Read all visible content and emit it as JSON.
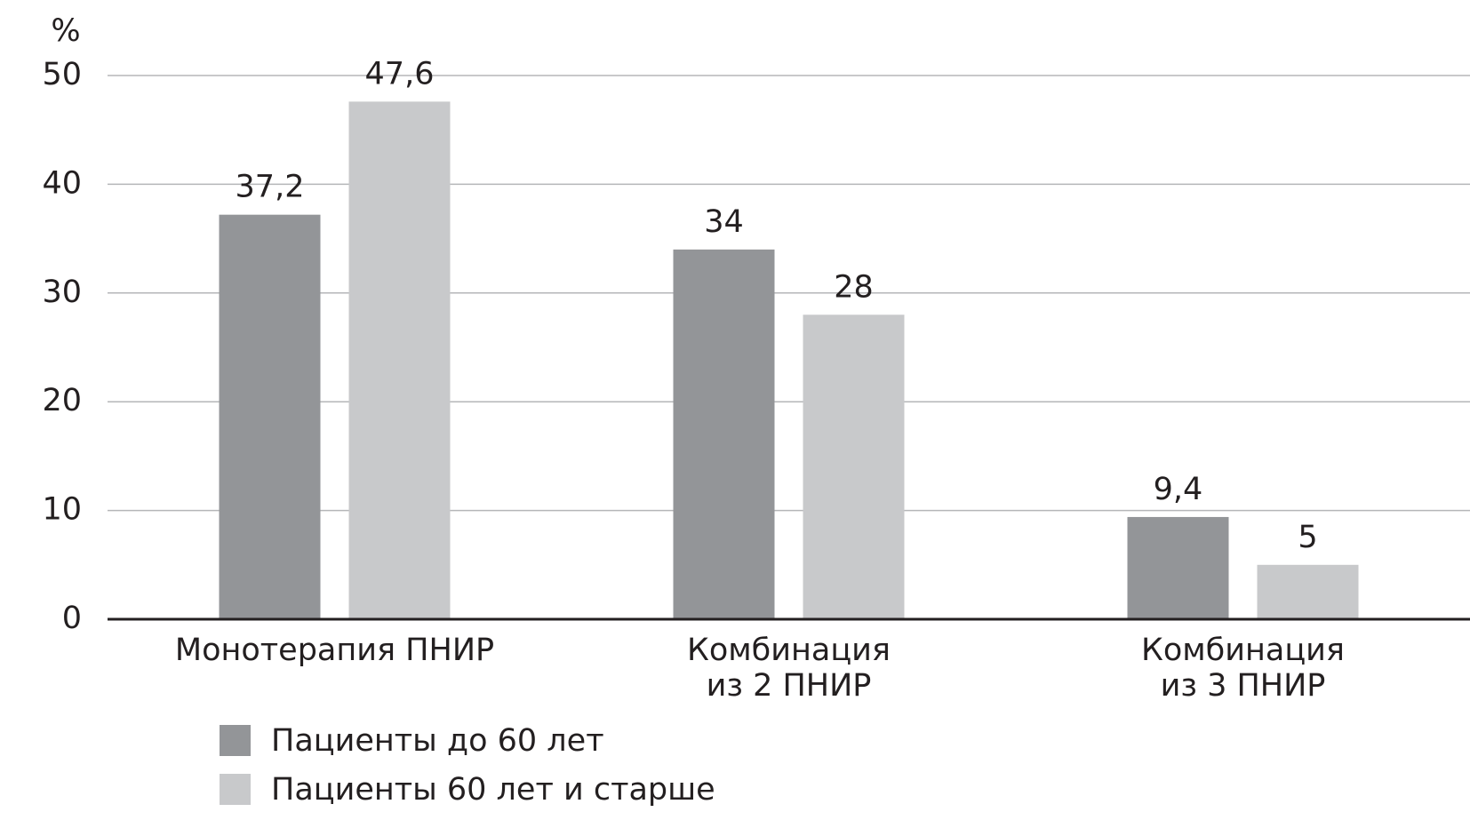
{
  "chart_data": {
    "type": "bar",
    "y_label": "%",
    "categories": [
      "Монотерапия ПНИР",
      "Комбинация\nиз 2 ПНИР",
      "Комбинация\nиз 3 ПНИР"
    ],
    "series": [
      {
        "name": "Пациенты до 60 лет",
        "color": "#939598",
        "values": [
          37.2,
          34,
          9.4
        ],
        "value_labels": [
          "37,2",
          "34",
          "9,4"
        ]
      },
      {
        "name": "Пациенты 60 лет и старше",
        "color": "#c8c9cb",
        "values": [
          47.6,
          28,
          5
        ],
        "value_labels": [
          "47,6",
          "28",
          "5"
        ]
      }
    ],
    "ylim": [
      0,
      50
    ],
    "yticks": [
      0,
      10,
      20,
      30,
      40,
      50
    ],
    "grid": true
  }
}
